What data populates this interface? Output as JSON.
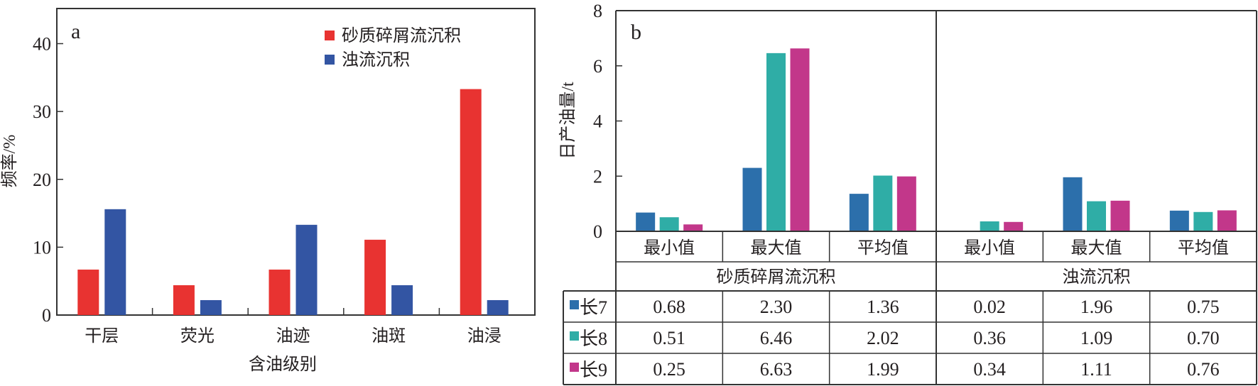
{
  "chart_data": [
    {
      "panel": "a",
      "type": "bar",
      "panel_label": "a",
      "title": "",
      "xlabel": "含油级别",
      "ylabel": "频率/%",
      "ylim": [
        0,
        45
      ],
      "yticks": [
        0,
        10,
        20,
        30,
        40
      ],
      "grid": false,
      "legend_position": "top-right",
      "categories": [
        "干层",
        "荧光",
        "油迹",
        "油斑",
        "油浸"
      ],
      "series": [
        {
          "name": "砂质碎屑流沉积",
          "color": "#e83331",
          "values": [
            6.7,
            4.4,
            6.7,
            11.1,
            33.3
          ]
        },
        {
          "name": "浊流沉积",
          "color": "#3355a3",
          "values": [
            15.6,
            2.2,
            13.3,
            4.4,
            2.2
          ]
        }
      ]
    },
    {
      "panel": "b",
      "type": "bar",
      "panel_label": "b",
      "title": "",
      "xlabel": "",
      "ylabel": "日产油量/t",
      "ylim": [
        0,
        8
      ],
      "yticks": [
        0,
        2,
        4,
        6,
        8
      ],
      "grid": false,
      "legend_position": "table-left",
      "groups": [
        "砂质碎屑流沉积",
        "浊流沉积"
      ],
      "categories": [
        "最小值",
        "最大值",
        "平均值",
        "最小值",
        "最大值",
        "平均值"
      ],
      "series": [
        {
          "name": "长7",
          "color": "#2c6fab",
          "values": [
            0.68,
            2.3,
            1.36,
            0.02,
            1.96,
            0.75
          ]
        },
        {
          "name": "长8",
          "color": "#2fada6",
          "values": [
            0.51,
            6.46,
            2.02,
            0.36,
            1.09,
            0.7
          ]
        },
        {
          "name": "长9",
          "color": "#c2378a",
          "values": [
            0.25,
            6.63,
            1.99,
            0.34,
            1.11,
            0.76
          ]
        }
      ],
      "table": {
        "rows": [
          {
            "label": "长7",
            "values": [
              "0.68",
              "2.30",
              "1.36",
              "0.02",
              "1.96",
              "0.75"
            ]
          },
          {
            "label": "长8",
            "values": [
              "0.51",
              "6.46",
              "2.02",
              "0.36",
              "1.09",
              "0.70"
            ]
          },
          {
            "label": "长9",
            "values": [
              "0.25",
              "6.63",
              "1.99",
              "0.34",
              "1.11",
              "0.76"
            ]
          }
        ]
      }
    }
  ]
}
